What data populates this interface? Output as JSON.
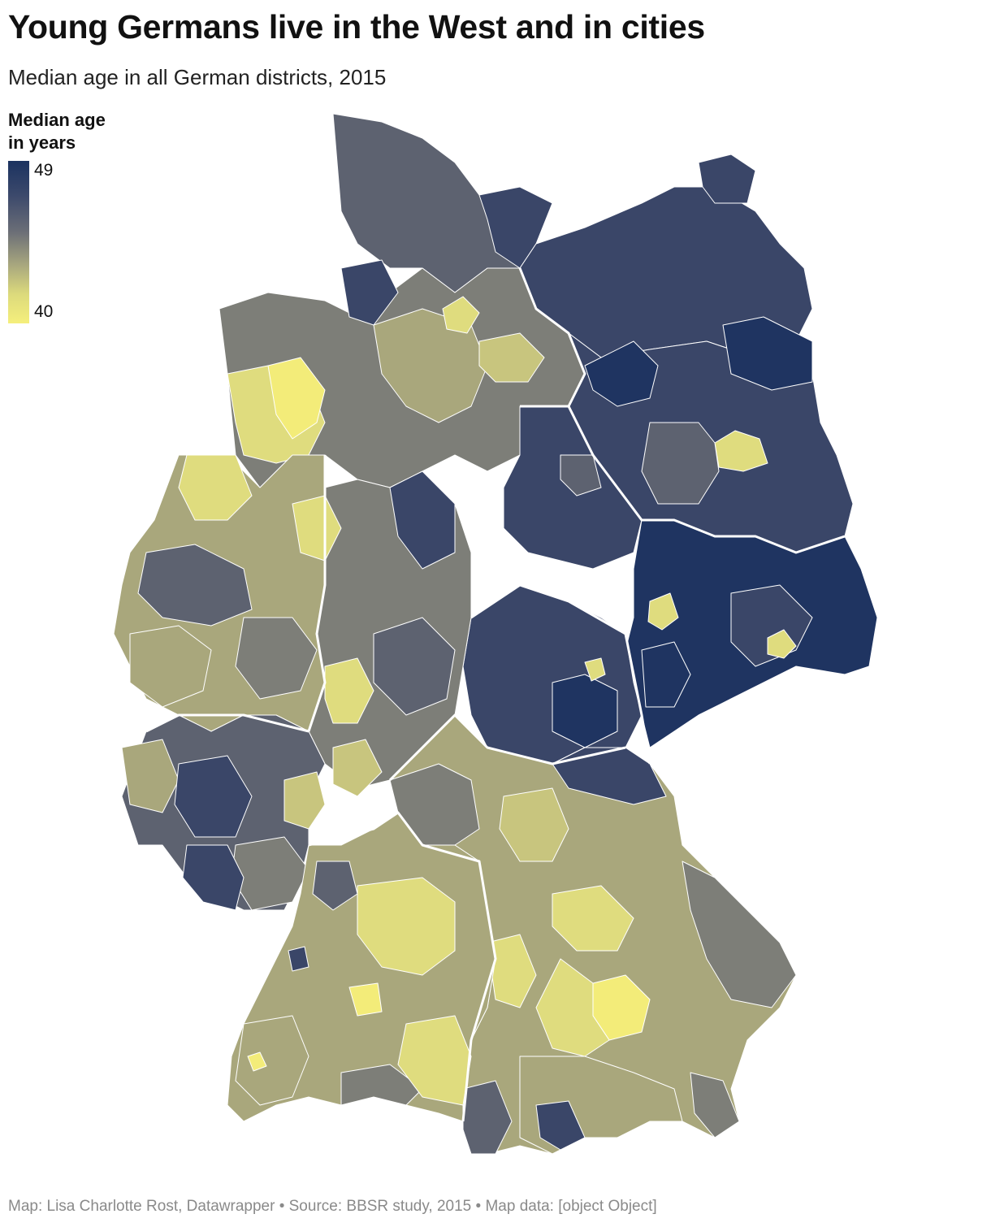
{
  "header": {
    "title": "Young Germans live in the West and in cities",
    "subtitle": "Median age in all German districts, 2015"
  },
  "legend": {
    "title_line1": "Median age",
    "title_line2": "in years",
    "max_label": "49",
    "min_label": "40",
    "scale_colors": [
      "#1b3260",
      "#3d4a6c",
      "#6c6f77",
      "#a8a77e",
      "#dcda7c",
      "#f5ef7c"
    ]
  },
  "map": {
    "region_colors": {
      "dark_navy": "#1f3461",
      "navy": "#3a4668",
      "slate": "#5d6270",
      "gray": "#7d7e78",
      "olive": "#a9a77c",
      "khaki": "#c8c57e",
      "pale_yellow": "#dfdc7e",
      "yellow": "#f3ec79"
    },
    "border_color": "#ffffff"
  },
  "footer": {
    "credit": "Map: Lisa Charlotte Rost, Datawrapper • Source: BBSR study, 2015 • Map data: [object Object]"
  }
}
